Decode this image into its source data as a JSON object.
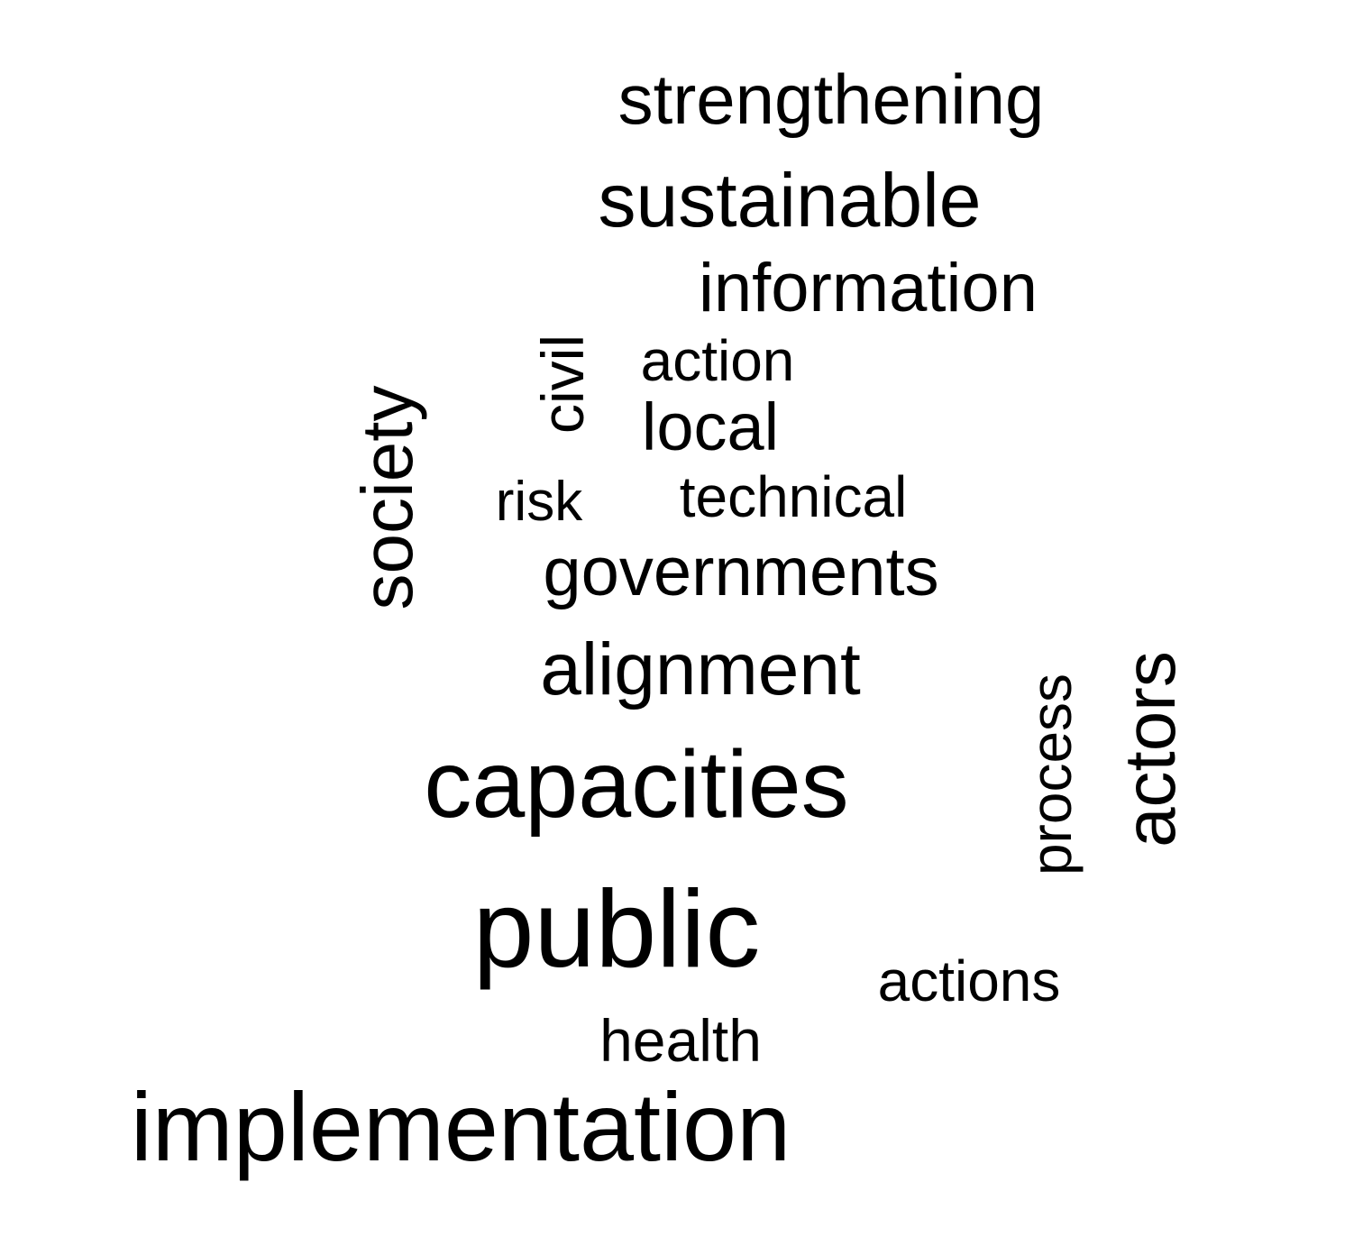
{
  "words": {
    "strengthening": "strengthening",
    "sustainable": "sustainable",
    "information": "information",
    "action": "action",
    "civil": "civil",
    "local": "local",
    "society": "society",
    "risk": "risk",
    "technical": "technical",
    "governments": "governments",
    "alignment": "alignment",
    "process": "process",
    "actors": "actors",
    "capacities": "capacities",
    "public": "public",
    "actions": "actions",
    "health": "health",
    "implementation": "implementation"
  },
  "colors": {
    "text": "#000000",
    "background": "#ffffff"
  }
}
